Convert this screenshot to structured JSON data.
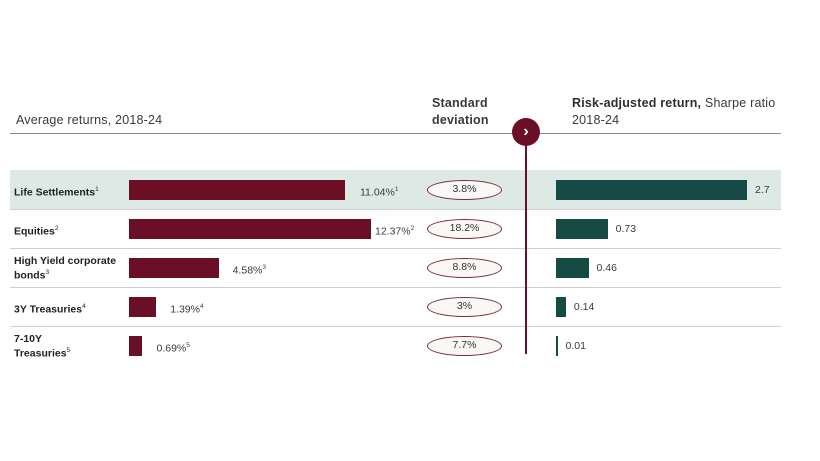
{
  "headers": {
    "avg_returns": "Average returns, 2018-24",
    "std_line1": "Standard",
    "std_line2": "deviation",
    "sharpe_bold": "Risk-adjusted return,",
    "sharpe_rest": " Sharpe ratio",
    "sharpe_line2": "2018-24"
  },
  "nav": {
    "arrow_icon": "chevron-right-icon",
    "arrow_glyph": "›"
  },
  "colors": {
    "returns_bar": "#6b0f26",
    "sharpe_bar": "#154a45",
    "highlight_row": "#dce9e4"
  },
  "chart_data": {
    "type": "table",
    "highlighted_row": 0,
    "columns": [
      "Average returns, 2018-24",
      "Standard deviation",
      "Risk-adjusted return, Sharpe ratio 2018-24"
    ],
    "rows": [
      {
        "line1": "Life Settlements",
        "line2": "",
        "sup": "1",
        "return": 11.04,
        "return_label": "11.04%",
        "return_sup": "1",
        "std": "3.8%",
        "sharpe": 2.7,
        "sharpe_label": "2.7"
      },
      {
        "line1": "Equities",
        "line2": "",
        "sup": "2",
        "return": 12.37,
        "return_label": "12.37%",
        "return_sup": "2",
        "std": "18.2%",
        "sharpe": 0.73,
        "sharpe_label": "0.73"
      },
      {
        "line1": "High Yield corporate",
        "line2": "bonds",
        "sup": "3",
        "return": 4.58,
        "return_label": "4.58%",
        "return_sup": "3",
        "std": "8.8%",
        "sharpe": 0.46,
        "sharpe_label": "0.46"
      },
      {
        "line1": "3Y Treasuries",
        "line2": "",
        "sup": "4",
        "return": 1.39,
        "return_label": "1.39%",
        "return_sup": "4",
        "std": "3%",
        "sharpe": 0.14,
        "sharpe_label": "0.14"
      },
      {
        "line1": "7-10Y",
        "line2": "Treasuries",
        "sup": "5",
        "return": 0.69,
        "return_label": "0.69%",
        "return_sup": "5",
        "std": "7.7%",
        "sharpe": 0.01,
        "sharpe_label": "0.01"
      }
    ]
  }
}
